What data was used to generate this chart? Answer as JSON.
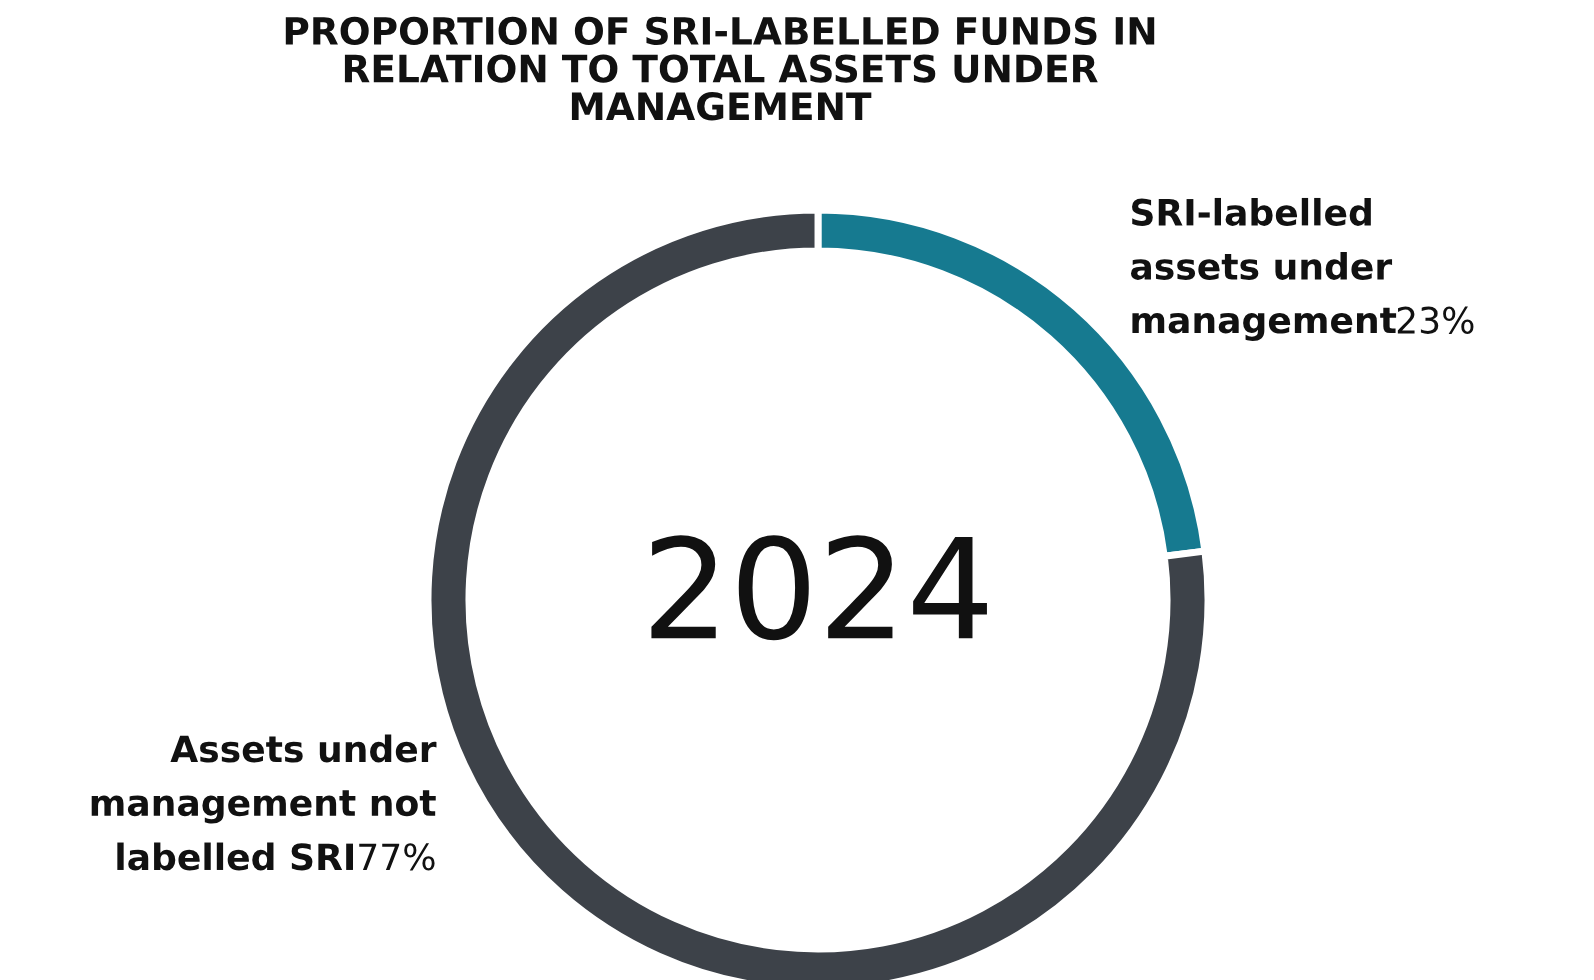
{
  "chart_data": {
    "type": "donut",
    "title": "PROPORTION OF SRI-LABELLED FUNDS IN RELATION TO TOTAL ASSETS UNDER MANAGEMENT",
    "categories": [
      "SRI-labelled assets under management",
      "Assets under management not labelled SRI"
    ],
    "values": [
      23,
      77
    ],
    "colors": [
      "#167a90",
      "#3d4249"
    ],
    "value_labels": [
      "23%",
      "77%"
    ],
    "annotations": [
      "2024"
    ],
    "legend": false
  }
}
